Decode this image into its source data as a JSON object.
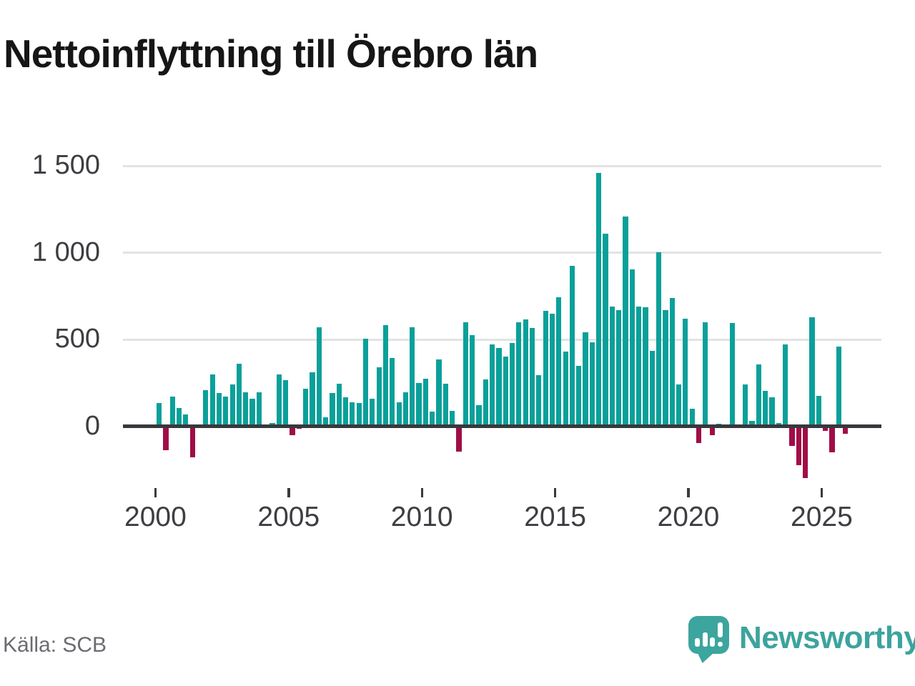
{
  "title": "Nettoinflyttning till Örebro län",
  "source": "Källa: SCB",
  "brand": "Newsworthy",
  "colors": {
    "positive": "#0aa09a",
    "negative": "#a00d47",
    "grid": "#e3e3e3",
    "zero_axis": "#38383c",
    "title_text": "#161616",
    "tick_text": "#3d3d42",
    "source_text": "#6b6b73",
    "brand_teal": "#3ca59e"
  },
  "chart_data": {
    "type": "bar",
    "title": "Nettoinflyttning till Örebro län",
    "frequency": "quarterly",
    "x_start": "2000-Q1",
    "x_end": "2025-Q4",
    "values": [
      135,
      -140,
      170,
      105,
      70,
      -180,
      0,
      210,
      300,
      190,
      170,
      240,
      360,
      195,
      160,
      195,
      0,
      20,
      300,
      265,
      -50,
      -15,
      215,
      310,
      570,
      50,
      190,
      245,
      165,
      140,
      135,
      505,
      160,
      340,
      585,
      395,
      140,
      195,
      570,
      250,
      275,
      85,
      385,
      245,
      90,
      -145,
      600,
      525,
      120,
      270,
      470,
      450,
      400,
      480,
      600,
      615,
      565,
      295,
      665,
      650,
      745,
      430,
      925,
      350,
      540,
      485,
      1460,
      1110,
      690,
      670,
      1210,
      905,
      690,
      685,
      435,
      1005,
      670,
      740,
      240,
      620,
      100,
      -95,
      600,
      -50,
      15,
      0,
      595,
      0,
      240,
      30,
      355,
      205,
      165,
      20,
      470,
      -115,
      -225,
      -300,
      630,
      175,
      -25,
      -150,
      460,
      -45
    ],
    "x_tick_years": [
      2000,
      2005,
      2010,
      2015,
      2020,
      2025
    ],
    "x_tick_labels": [
      "2000",
      "2005",
      "2010",
      "2015",
      "2020",
      "2025"
    ],
    "y_ticks": [
      0,
      500,
      1000,
      1500
    ],
    "y_tick_labels": [
      "0",
      "500",
      "1 000",
      "1 500"
    ],
    "ylim": [
      -330,
      1560
    ],
    "grid": "horizontal-only",
    "legend": "none",
    "positive_color": "#0aa09a",
    "negative_color": "#a00d47"
  }
}
